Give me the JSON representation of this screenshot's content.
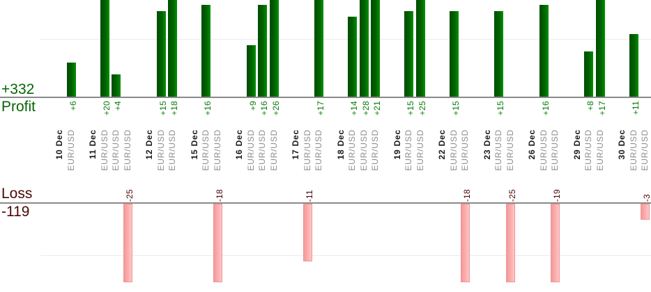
{
  "chart_data": {
    "type": "bar",
    "description": "Per-trade profit and loss bars grouped by trade date; profit panel on top, loss panel below; value labels and category labels rotated 90 degrees reading bottom-to-top; tall bars clipped at panel edges",
    "profit_panel": {
      "total_label": "+332",
      "axis_label": "Profit",
      "bar_color": "#016201",
      "value_label_color": "#047b04",
      "gridline_value": 10,
      "ylim_visible": [
        0,
        16.9
      ]
    },
    "loss_panel": {
      "axis_label": "Loss",
      "total_label": "-119",
      "bar_color": "#f9abab",
      "value_label_color": "#4d0505",
      "gridline_value": -10,
      "ylim_visible": [
        0,
        -15.2
      ]
    },
    "x_axis": {
      "date_label_color": "#1a1a1a",
      "symbol_label_color": "#8e8e8e"
    },
    "axis_line_color": "#8a8a8a",
    "gridline_color": "#ececec",
    "groups": [
      {
        "date": "10 Dec",
        "trades": [
          {
            "symbol": "EUR/USD",
            "value": 6,
            "label": "+6"
          }
        ]
      },
      {
        "date": "11 Dec",
        "trades": [
          {
            "symbol": "EUR/USD",
            "value": 20,
            "label": "+20"
          },
          {
            "symbol": "EUR/USD",
            "value": 4,
            "label": "+4"
          },
          {
            "symbol": "EUR/USD",
            "value": -25,
            "label": "-25"
          }
        ]
      },
      {
        "date": "12 Dec",
        "trades": [
          {
            "symbol": "EUR/USD",
            "value": 15,
            "label": "+15"
          },
          {
            "symbol": "EUR/USD",
            "value": 18,
            "label": "+18"
          }
        ]
      },
      {
        "date": "15 Dec",
        "trades": [
          {
            "symbol": "EUR/USD",
            "value": 16,
            "label": "+16"
          },
          {
            "symbol": "EUR/USD",
            "value": -18,
            "label": "-18"
          }
        ]
      },
      {
        "date": "16 Dec",
        "trades": [
          {
            "symbol": "EUR/USD",
            "value": 9,
            "label": "+9"
          },
          {
            "symbol": "EUR/USD",
            "value": 16,
            "label": "+16"
          },
          {
            "symbol": "EUR/USD",
            "value": 26,
            "label": "+26"
          }
        ]
      },
      {
        "date": "17 Dec",
        "trades": [
          {
            "symbol": "EUR/USD",
            "value": -11,
            "label": "-11"
          },
          {
            "symbol": "EUR/USD",
            "value": 17,
            "label": "+17"
          }
        ]
      },
      {
        "date": "18 Dec",
        "trades": [
          {
            "symbol": "EUR/USD",
            "value": 14,
            "label": "+14"
          },
          {
            "symbol": "EUR/USD",
            "value": 28,
            "label": "+28"
          },
          {
            "symbol": "EUR/USD",
            "value": 21,
            "label": "+21"
          }
        ]
      },
      {
        "date": "19 Dec",
        "trades": [
          {
            "symbol": "EUR/USD",
            "value": 15,
            "label": "+15"
          },
          {
            "symbol": "EUR/USD",
            "value": 25,
            "label": "+25"
          }
        ]
      },
      {
        "date": "22 Dec",
        "trades": [
          {
            "symbol": "EUR/USD",
            "value": 15,
            "label": "+15"
          },
          {
            "symbol": "EUR/USD",
            "value": -18,
            "label": "-18"
          }
        ]
      },
      {
        "date": "23 Dec",
        "trades": [
          {
            "symbol": "EUR/USD",
            "value": 15,
            "label": "+15"
          },
          {
            "symbol": "EUR/USD",
            "value": -25,
            "label": "-25"
          }
        ]
      },
      {
        "date": "26 Dec",
        "trades": [
          {
            "symbol": "EUR/USD",
            "value": 16,
            "label": "+16"
          },
          {
            "symbol": "EUR/USD",
            "value": -19,
            "label": "-19"
          }
        ]
      },
      {
        "date": "29 Dec",
        "trades": [
          {
            "symbol": "EUR/USD",
            "value": 8,
            "label": "+8"
          },
          {
            "symbol": "EUR/USD",
            "value": 17,
            "label": "+17"
          }
        ]
      },
      {
        "date": "30 Dec",
        "trades": [
          {
            "symbol": "EUR/USD",
            "value": 11,
            "label": "+11"
          },
          {
            "symbol": "EUR/USD",
            "value": -3,
            "label": "-3"
          }
        ]
      }
    ]
  }
}
